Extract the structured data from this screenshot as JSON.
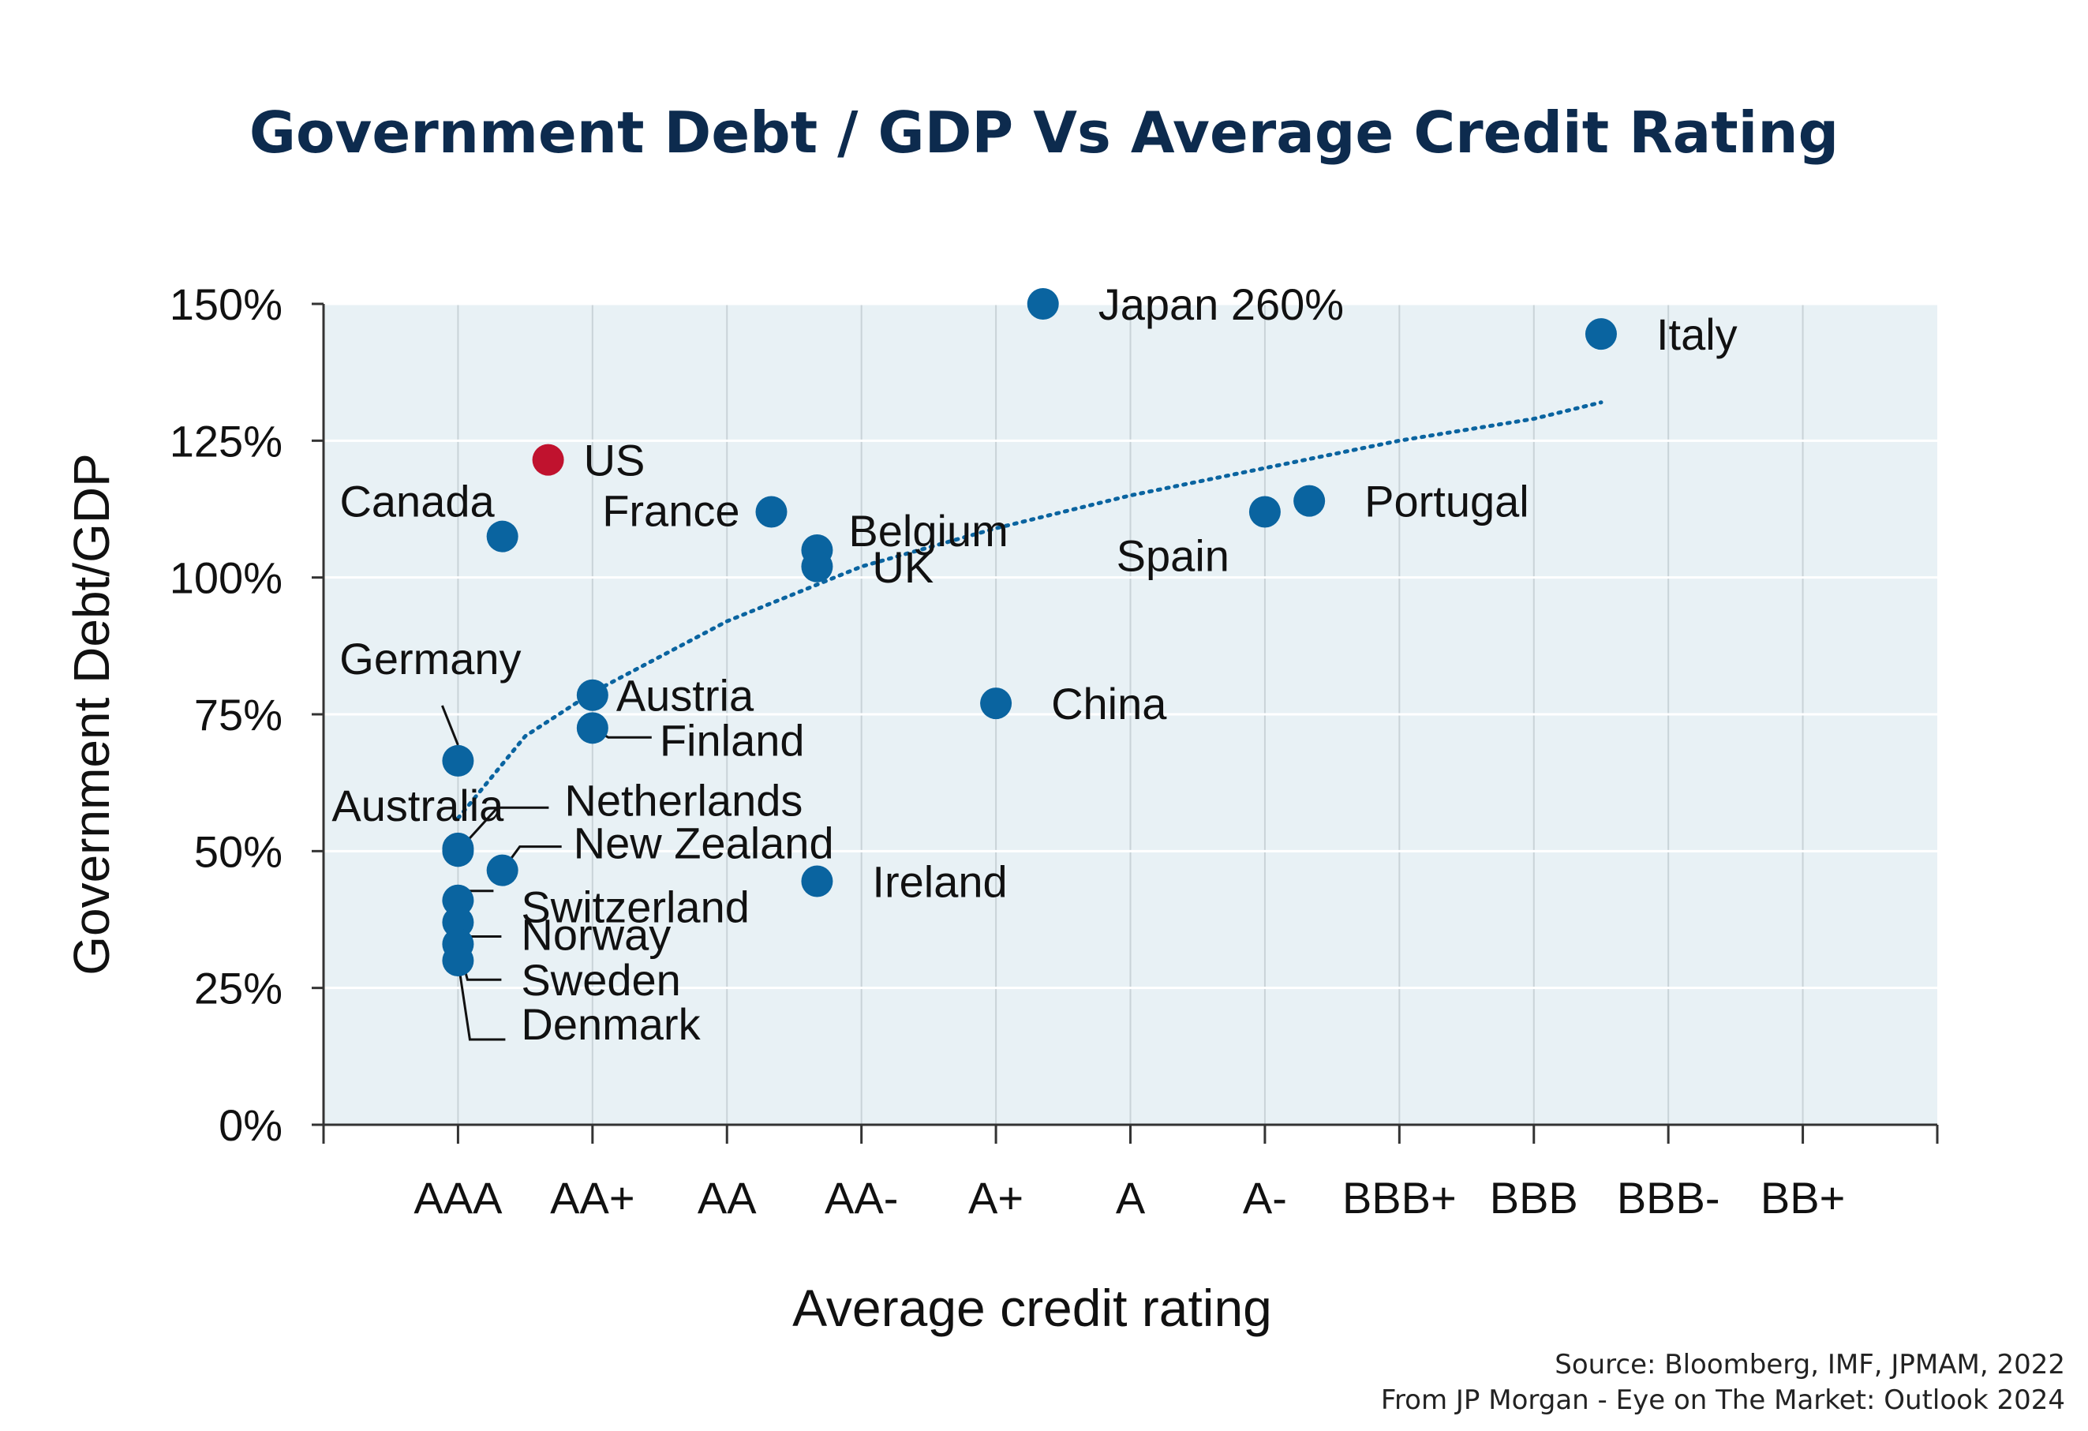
{
  "chart_data": {
    "type": "scatter",
    "title": "Government Debt / GDP Vs Average Credit Rating",
    "xlabel": "Average credit rating",
    "ylabel": "Government Debt/GDP",
    "x_categories": [
      "AAA",
      "AA+",
      "AA",
      "AA-",
      "A+",
      "A",
      "A-",
      "BBB+",
      "BBB",
      "BBB-",
      "BB+"
    ],
    "yticks": [
      "0%",
      "25%",
      "50%",
      "75%",
      "100%",
      "125%",
      "150%"
    ],
    "ylim": [
      0,
      150
    ],
    "grid": true,
    "points": [
      {
        "name": "Japan 260%",
        "x": 5.35,
        "y": 150,
        "color": "#0a64a0"
      },
      {
        "name": "Italy",
        "x": 9.5,
        "y": 144.5,
        "color": "#0a64a0"
      },
      {
        "name": "US",
        "x": 1.67,
        "y": 121.5,
        "color": "#c0122e"
      },
      {
        "name": "Canada",
        "x": 1.33,
        "y": 107.5,
        "color": "#0a64a0"
      },
      {
        "name": "France",
        "x": 3.33,
        "y": 112,
        "color": "#0a64a0"
      },
      {
        "name": "Belgium",
        "x": 3.67,
        "y": 105,
        "color": "#0a64a0"
      },
      {
        "name": "UK",
        "x": 3.67,
        "y": 102,
        "color": "#0a64a0"
      },
      {
        "name": "Spain",
        "x": 7.0,
        "y": 112,
        "color": "#0a64a0"
      },
      {
        "name": "Portugal",
        "x": 7.33,
        "y": 114,
        "color": "#0a64a0"
      },
      {
        "name": "Germany",
        "x": 1.0,
        "y": 66.5,
        "color": "#0a64a0"
      },
      {
        "name": "Austria",
        "x": 2.0,
        "y": 78.5,
        "color": "#0a64a0"
      },
      {
        "name": "Finland",
        "x": 2.0,
        "y": 72.5,
        "color": "#0a64a0"
      },
      {
        "name": "China",
        "x": 5.0,
        "y": 77,
        "color": "#0a64a0"
      },
      {
        "name": "Australia",
        "x": 1.0,
        "y": 50.5,
        "color": "#0a64a0"
      },
      {
        "name": "Netherlands",
        "x": 1.0,
        "y": 50,
        "color": "#0a64a0"
      },
      {
        "name": "New Zealand",
        "x": 1.33,
        "y": 46.5,
        "color": "#0a64a0"
      },
      {
        "name": "Ireland",
        "x": 3.67,
        "y": 44.5,
        "color": "#0a64a0"
      },
      {
        "name": "Switzerland",
        "x": 1.0,
        "y": 41,
        "color": "#0a64a0"
      },
      {
        "name": "Norway",
        "x": 1.0,
        "y": 37,
        "color": "#0a64a0"
      },
      {
        "name": "Sweden",
        "x": 1.0,
        "y": 33,
        "color": "#0a64a0"
      },
      {
        "name": "Denmark",
        "x": 1.0,
        "y": 30,
        "color": "#0a64a0"
      }
    ],
    "trendline": {
      "style": "dotted",
      "color": "#0a64a0",
      "x": [
        1.0,
        1.5,
        2.0,
        3.0,
        4.0,
        5.0,
        6.0,
        7.0,
        8.0,
        9.0,
        9.5
      ],
      "y": [
        56,
        71,
        79,
        92,
        102,
        109,
        115,
        120,
        125,
        129,
        132
      ]
    }
  },
  "source_lines": [
    "Source: Bloomberg, IMF, JPMAM, 2022",
    "From JP Morgan - Eye on The Market: Outlook 2024"
  ],
  "colors": {
    "title": "#0d2b4e",
    "plot_background": "#e8f1f5",
    "point": "#0a64a0",
    "highlight_point": "#c0122e"
  }
}
